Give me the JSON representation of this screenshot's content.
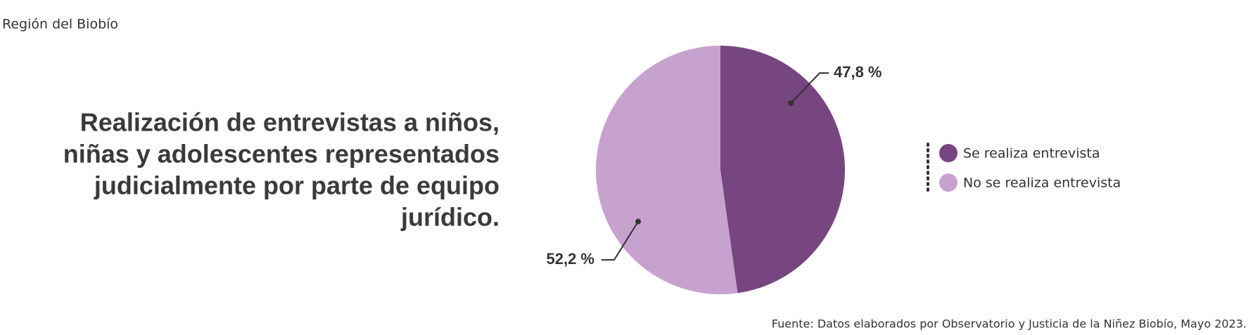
{
  "chart_data": {
    "type": "pie",
    "subtitle": "Región del Biobío",
    "title": [
      "Realización de entrevistas a niños,",
      "niñas y adolescentes representados",
      "judicialmente por parte de equipo",
      "jurídico."
    ],
    "categories": [
      "Se realiza entrevista",
      "No se realiza entrevista"
    ],
    "values": [
      47.8,
      52.2
    ],
    "value_labels": [
      "47,8 %",
      "52,2 %"
    ],
    "colors": [
      "#774580",
      "#c8a2cf"
    ],
    "source": "Fuente: Datos elaborados por Observatorio y Justicia de la Niñez Biobío, Mayo 2023."
  }
}
